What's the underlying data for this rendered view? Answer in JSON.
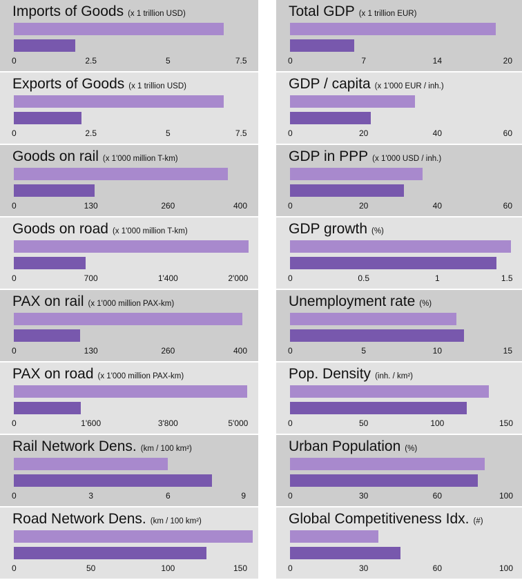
{
  "colors": {
    "series_a": "#a889cd",
    "series_b": "#7858ad",
    "gray": "#cdcdcd",
    "light": "#e2e2e2"
  },
  "chart_data": [
    {
      "type": "bar",
      "title": "Imports of Goods",
      "unit": "(x 1 trillion USD)",
      "ticks": [
        "0",
        "2.5",
        "5",
        "7.5"
      ],
      "xlim": [
        0,
        7.5
      ],
      "values": [
        6.8,
        2.0
      ],
      "bg": "gray"
    },
    {
      "type": "bar",
      "title": "Total GDP",
      "unit": "(x 1 trillion EUR)",
      "ticks": [
        "0",
        "7",
        "14",
        "20"
      ],
      "xlim": [
        0,
        20
      ],
      "values": [
        18.6,
        5.8
      ],
      "bg": "gray"
    },
    {
      "type": "bar",
      "title": "Exports of Goods",
      "unit": "(x 1 trillion USD)",
      "ticks": [
        "0",
        "2.5",
        "5",
        "7.5"
      ],
      "xlim": [
        0,
        7.5
      ],
      "values": [
        6.8,
        2.2
      ],
      "bg": "light"
    },
    {
      "type": "bar",
      "title": "GDP / capita",
      "unit": "(x 1'000 EUR / inh.)",
      "ticks": [
        "0",
        "20",
        "40",
        "60"
      ],
      "xlim": [
        0,
        60
      ],
      "values": [
        34,
        22
      ],
      "bg": "light"
    },
    {
      "type": "bar",
      "title": "Goods on rail",
      "unit": "(x 1'000 million T-km)",
      "ticks": [
        "0",
        "130",
        "260",
        "400"
      ],
      "xlim": [
        0,
        400
      ],
      "values": [
        370,
        140
      ],
      "bg": "gray"
    },
    {
      "type": "bar",
      "title": "GDP in PPP",
      "unit": "(x 1'000 USD / inh.)",
      "ticks": [
        "0",
        "20",
        "40",
        "60"
      ],
      "xlim": [
        0,
        60
      ],
      "values": [
        36,
        31
      ],
      "bg": "gray"
    },
    {
      "type": "bar",
      "title": "Goods on road",
      "unit": "(x 1'000 million T-km)",
      "ticks": [
        "0",
        "700",
        "1'400",
        "2'000"
      ],
      "xlim": [
        0,
        2000
      ],
      "values": [
        2030,
        620
      ],
      "bg": "light"
    },
    {
      "type": "bar",
      "title": "GDP growth",
      "unit": "(%)",
      "ticks": [
        "0",
        "0.5",
        "1",
        "1.5"
      ],
      "xlim": [
        0,
        1.5
      ],
      "values": [
        1.5,
        1.4
      ],
      "bg": "light"
    },
    {
      "type": "bar",
      "title": "PAX on rail",
      "unit": "(x 1'000 million PAX-km)",
      "ticks": [
        "0",
        "130",
        "260",
        "400"
      ],
      "xlim": [
        0,
        400
      ],
      "values": [
        395,
        115
      ],
      "bg": "gray"
    },
    {
      "type": "bar",
      "title": "Unemployment rate",
      "unit": "(%)",
      "ticks": [
        "0",
        "5",
        "10",
        "15"
      ],
      "xlim": [
        0,
        15
      ],
      "values": [
        11.3,
        11.8
      ],
      "bg": "gray"
    },
    {
      "type": "bar",
      "title": "PAX on road",
      "unit": "(x 1'000 million PAX-km)",
      "ticks": [
        "0",
        "1'600",
        "3'800",
        "5'000"
      ],
      "xlim": [
        0,
        5000
      ],
      "values": [
        5050,
        1450
      ],
      "bg": "light"
    },
    {
      "type": "bar",
      "title": "Pop. Density",
      "unit": "(inh. / km²)",
      "ticks": [
        "0",
        "50",
        "100",
        "150"
      ],
      "xlim": [
        0,
        150
      ],
      "values": [
        135,
        120
      ],
      "bg": "light"
    },
    {
      "type": "bar",
      "title": "Rail Network Dens.",
      "unit": "(km / 100 km²)",
      "ticks": [
        "0",
        "3",
        "6",
        "9"
      ],
      "xlim": [
        0,
        9
      ],
      "values": [
        6.0,
        7.7
      ],
      "bg": "gray"
    },
    {
      "type": "bar",
      "title": "Urban Population",
      "unit": "(%)",
      "ticks": [
        "0",
        "30",
        "60",
        "100"
      ],
      "xlim": [
        0,
        100
      ],
      "values": [
        88,
        85
      ],
      "bg": "gray"
    },
    {
      "type": "bar",
      "title": "Road Network Dens.",
      "unit": "(km / 100 km²)",
      "ticks": [
        "0",
        "50",
        "100",
        "150"
      ],
      "xlim": [
        0,
        150
      ],
      "values": [
        155,
        125
      ],
      "bg": "light"
    },
    {
      "type": "bar",
      "title": "Global Competitiveness Idx.",
      "unit": "(#)",
      "ticks": [
        "0",
        "30",
        "60",
        "100"
      ],
      "xlim": [
        0,
        100
      ],
      "values": [
        40,
        50
      ],
      "bg": "light"
    }
  ]
}
